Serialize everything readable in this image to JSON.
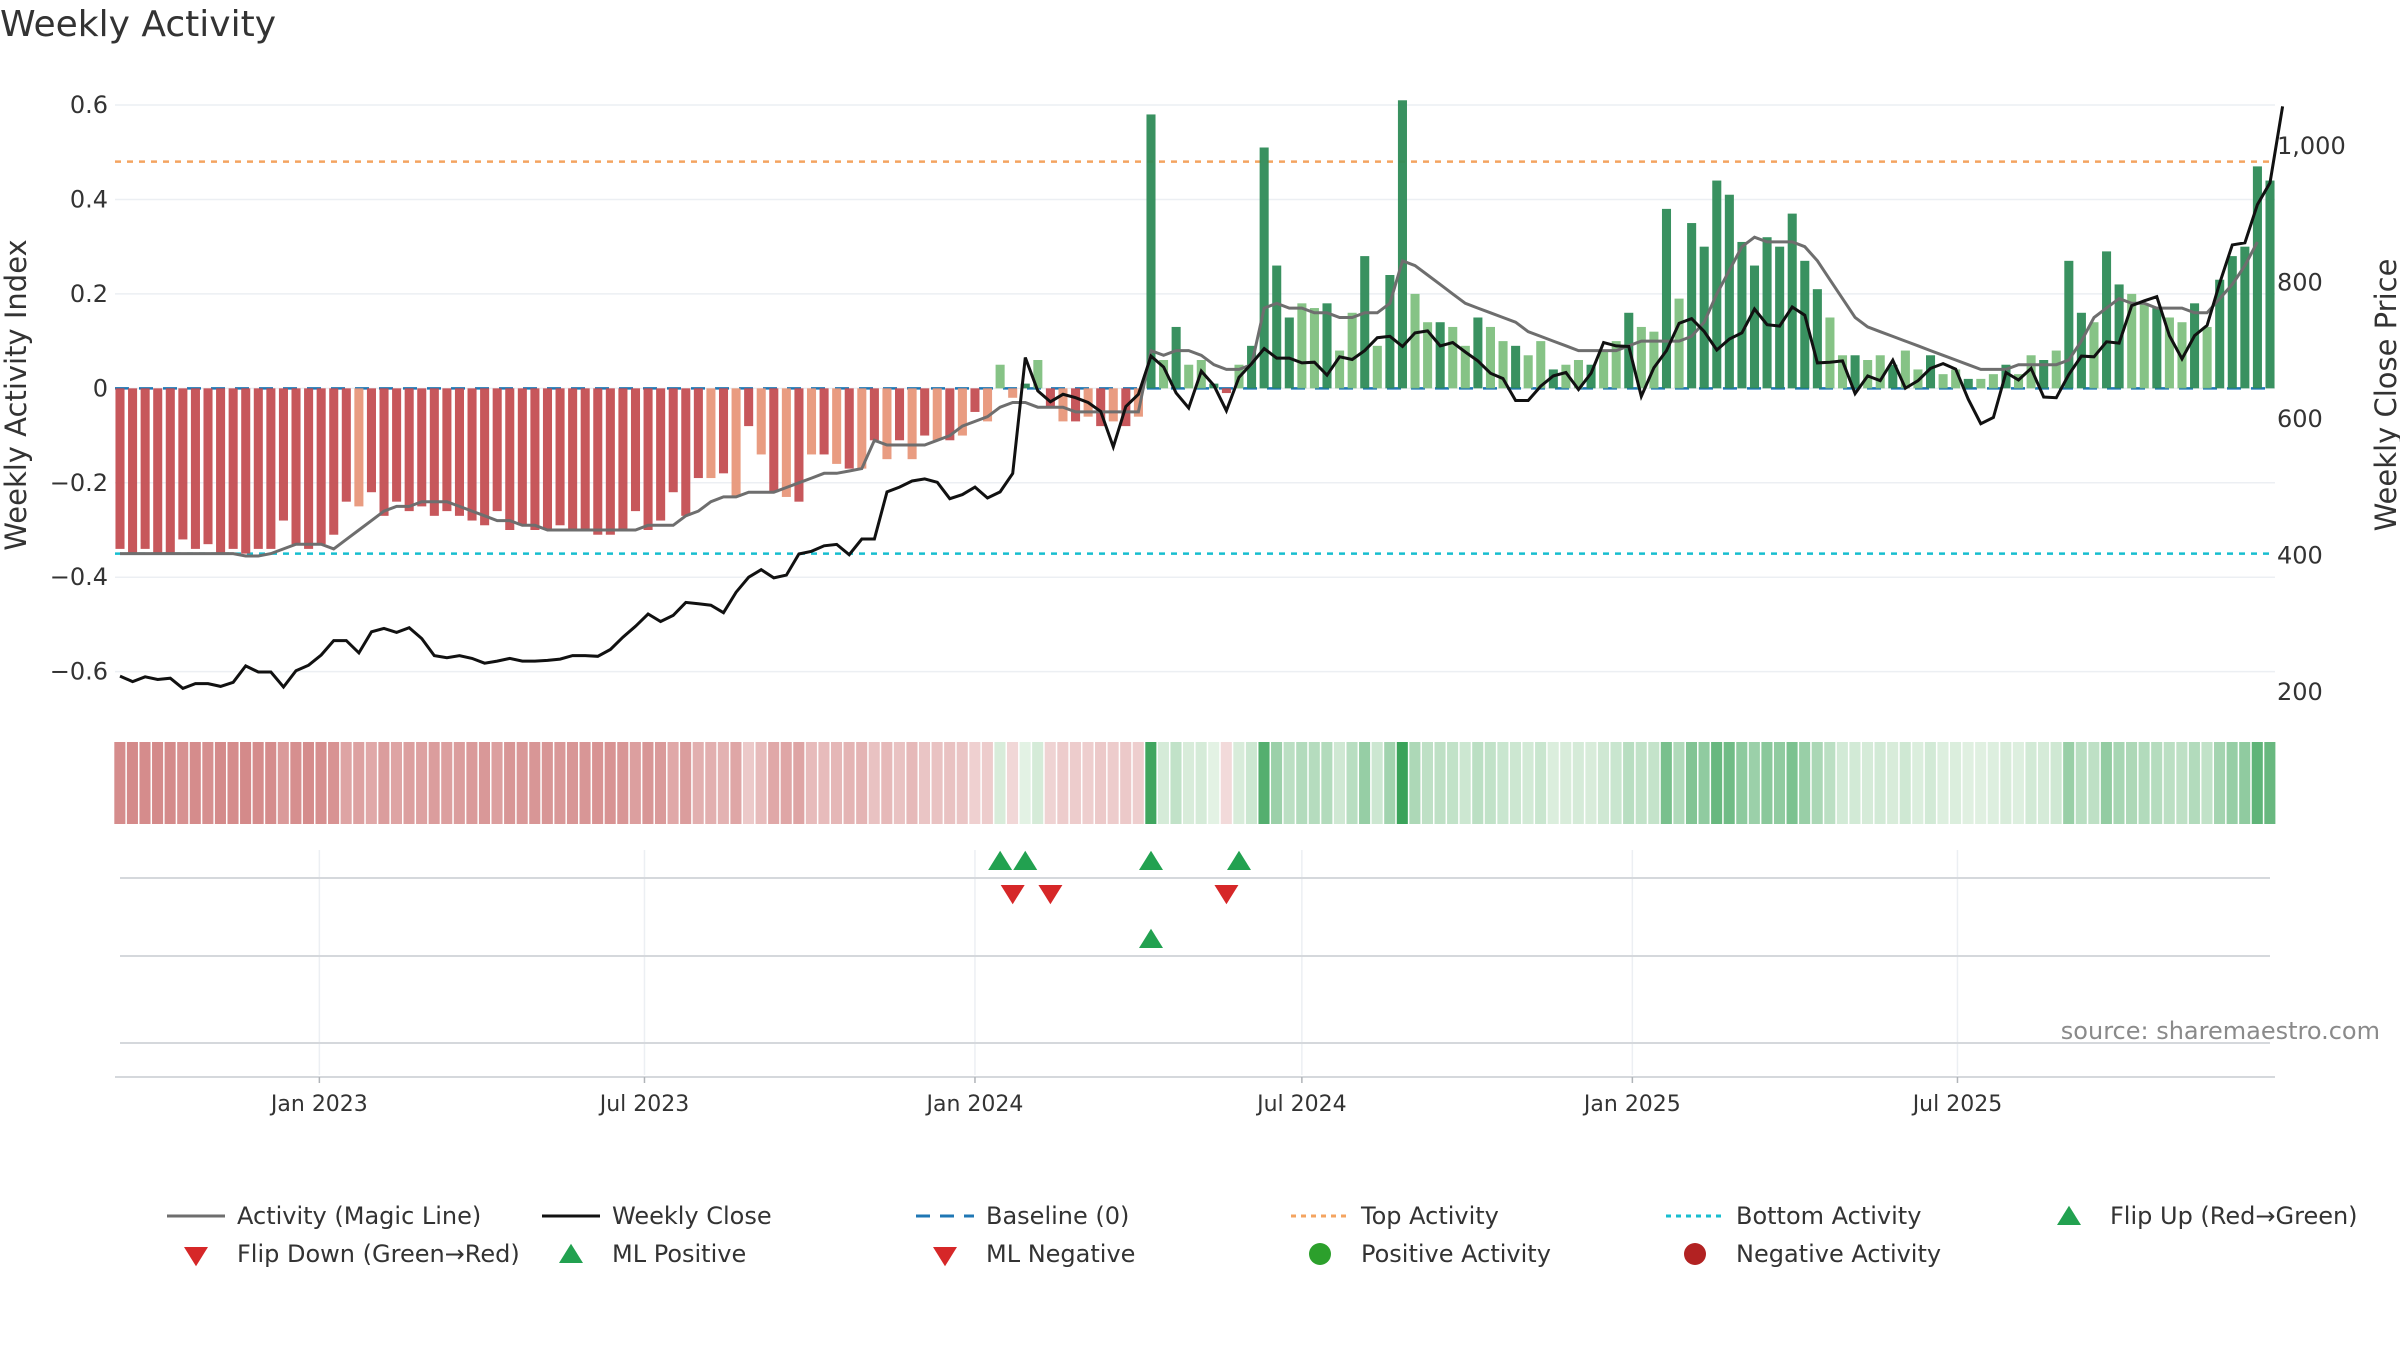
{
  "chart_data": {
    "type": "bar",
    "title": "Weekly Activity",
    "ylabel": "Weekly Activity Index",
    "y2label": "Weekly Close Price",
    "ylim": [
      -0.66,
      0.6
    ],
    "y2lim": [
      188,
      1060
    ],
    "yticks": [
      "0.6",
      "0.4",
      "0.2",
      "0",
      "−0.2",
      "−0.4",
      "−0.6"
    ],
    "yticks_values": [
      0.6,
      0.4,
      0.2,
      0,
      -0.2,
      -0.4,
      -0.6
    ],
    "y2ticks": [
      "1,000",
      "800",
      "600",
      "400",
      "200"
    ],
    "y2ticks_values": [
      1000,
      800,
      600,
      400,
      200
    ],
    "date_ticks": [
      "Jan 2023",
      "Jul 2023",
      "Jan 2024",
      "Jul 2024",
      "Jan 2025",
      "Jul 2025"
    ],
    "x_start": "2022-09-12",
    "x_step_days": 7,
    "top_activity": 0.48,
    "bottom_activity": -0.35,
    "baseline": 0,
    "source": "source: sharemaestro.com",
    "grid": true,
    "legend_placement": "bottom",
    "colors": {
      "bar_dark_red": "#c44e52",
      "bar_light_red": "#e8977a",
      "bar_dark_green": "#2e8b57",
      "bar_light_green": "#7fc07f",
      "magic_line": "#6e6e6e",
      "close_line": "#111111",
      "baseline": "#1f77b4",
      "top_line": "#f4a460",
      "bottom_line": "#17becf",
      "flip_up": "#22a150",
      "flip_down": "#d62728",
      "positive": "#2ca02c",
      "negative": "#b22222"
    },
    "activity": [
      -0.34,
      -0.35,
      -0.34,
      -0.35,
      -0.35,
      -0.32,
      -0.34,
      -0.33,
      -0.35,
      -0.34,
      -0.35,
      -0.34,
      -0.34,
      -0.28,
      -0.33,
      -0.34,
      -0.33,
      -0.31,
      -0.24,
      -0.25,
      -0.22,
      -0.27,
      -0.24,
      -0.26,
      -0.25,
      -0.27,
      -0.26,
      -0.27,
      -0.28,
      -0.29,
      -0.26,
      -0.3,
      -0.29,
      -0.3,
      -0.3,
      -0.29,
      -0.3,
      -0.3,
      -0.31,
      -0.31,
      -0.3,
      -0.26,
      -0.3,
      -0.28,
      -0.22,
      -0.27,
      -0.19,
      -0.19,
      -0.18,
      -0.23,
      -0.08,
      -0.14,
      -0.22,
      -0.23,
      -0.24,
      -0.14,
      -0.14,
      -0.16,
      -0.17,
      -0.17,
      -0.11,
      -0.15,
      -0.11,
      -0.15,
      -0.1,
      -0.11,
      -0.11,
      -0.1,
      -0.05,
      -0.07,
      0.05,
      -0.02,
      0.01,
      0.06,
      -0.04,
      -0.07,
      -0.07,
      -0.06,
      -0.08,
      -0.07,
      -0.08,
      -0.06,
      0.58,
      0.06,
      0.13,
      0.05,
      0.06,
      0.01,
      -0.01,
      0.05,
      0.09,
      0.51,
      0.26,
      0.15,
      0.18,
      0.17,
      0.18,
      0.08,
      0.16,
      0.28,
      0.09,
      0.24,
      0.61,
      0.2,
      0.14,
      0.14,
      0.13,
      0.09,
      0.15,
      0.13,
      0.1,
      0.09,
      0.07,
      0.1,
      0.04,
      0.05,
      0.06,
      0.05,
      0.08,
      0.1,
      0.16,
      0.13,
      0.12,
      0.38,
      0.19,
      0.35,
      0.3,
      0.44,
      0.41,
      0.31,
      0.26,
      0.32,
      0.3,
      0.37,
      0.27,
      0.21,
      0.15,
      0.07,
      0.07,
      0.06,
      0.07,
      0.05,
      0.08,
      0.04,
      0.07,
      0.03,
      0.04,
      0.02,
      0.02,
      0.03,
      0.05,
      0.03,
      0.07,
      0.06,
      0.08,
      0.27,
      0.16,
      0.14,
      0.29,
      0.22,
      0.2,
      0.18,
      0.17,
      0.15,
      0.14,
      0.18,
      0.13,
      0.23,
      0.28,
      0.3,
      0.47,
      0.44
    ],
    "magic_line": [
      -0.35,
      -0.35,
      -0.35,
      -0.35,
      -0.35,
      -0.35,
      -0.35,
      -0.35,
      -0.35,
      -0.35,
      -0.355,
      -0.355,
      -0.35,
      -0.34,
      -0.33,
      -0.33,
      -0.33,
      -0.34,
      -0.32,
      -0.3,
      -0.28,
      -0.26,
      -0.25,
      -0.25,
      -0.24,
      -0.24,
      -0.24,
      -0.25,
      -0.26,
      -0.27,
      -0.28,
      -0.28,
      -0.29,
      -0.29,
      -0.3,
      -0.3,
      -0.3,
      -0.3,
      -0.3,
      -0.3,
      -0.3,
      -0.3,
      -0.29,
      -0.29,
      -0.29,
      -0.27,
      -0.26,
      -0.24,
      -0.23,
      -0.23,
      -0.22,
      -0.22,
      -0.22,
      -0.21,
      -0.2,
      -0.19,
      -0.18,
      -0.18,
      -0.175,
      -0.17,
      -0.11,
      -0.12,
      -0.12,
      -0.12,
      -0.12,
      -0.11,
      -0.1,
      -0.08,
      -0.07,
      -0.06,
      -0.04,
      -0.03,
      -0.03,
      -0.04,
      -0.04,
      -0.04,
      -0.05,
      -0.05,
      -0.05,
      -0.05,
      -0.05,
      -0.05,
      0.08,
      0.07,
      0.08,
      0.08,
      0.07,
      0.05,
      0.04,
      0.04,
      0.05,
      0.17,
      0.18,
      0.17,
      0.17,
      0.16,
      0.16,
      0.15,
      0.15,
      0.16,
      0.16,
      0.18,
      0.27,
      0.26,
      0.24,
      0.22,
      0.2,
      0.18,
      0.17,
      0.16,
      0.15,
      0.14,
      0.12,
      0.11,
      0.1,
      0.09,
      0.08,
      0.08,
      0.08,
      0.08,
      0.09,
      0.1,
      0.1,
      0.1,
      0.1,
      0.11,
      0.14,
      0.2,
      0.25,
      0.3,
      0.32,
      0.31,
      0.31,
      0.31,
      0.3,
      0.27,
      0.23,
      0.19,
      0.15,
      0.13,
      0.12,
      0.11,
      0.1,
      0.09,
      0.08,
      0.07,
      0.06,
      0.05,
      0.04,
      0.04,
      0.04,
      0.05,
      0.05,
      0.05,
      0.05,
      0.06,
      0.1,
      0.15,
      0.17,
      0.19,
      0.18,
      0.18,
      0.17,
      0.17,
      0.17,
      0.16,
      0.16,
      0.19,
      0.22,
      0.26,
      0.31
    ],
    "weekly_close": [
      223,
      215,
      222,
      218,
      220,
      205,
      212,
      212,
      208,
      214,
      238,
      229,
      229,
      207,
      231,
      239,
      254,
      275,
      275,
      257,
      288,
      293,
      287,
      294,
      278,
      253,
      250,
      253,
      249,
      242,
      245,
      249,
      245,
      245,
      246,
      248,
      253,
      253,
      252,
      262,
      280,
      296,
      314,
      303,
      312,
      331,
      329,
      327,
      316,
      346,
      368,
      379,
      367,
      371,
      402,
      406,
      414,
      416,
      401,
      424,
      424,
      493,
      500,
      509,
      512,
      507,
      483,
      489,
      500,
      484,
      493,
      520,
      690,
      641,
      625,
      636,
      631,
      624,
      611,
      559,
      618,
      636,
      692,
      676,
      638,
      616,
      670,
      649,
      612,
      661,
      681,
      703,
      689,
      689,
      682,
      683,
      664,
      691,
      687,
      700,
      719,
      721,
      706,
      726,
      729,
      707,
      712,
      698,
      685,
      667,
      659,
      627,
      627,
      648,
      663,
      668,
      643,
      667,
      712,
      707,
      706,
      633,
      675,
      700,
      740,
      747,
      728,
      701,
      717,
      726,
      761,
      738,
      736,
      764,
      752,
      682,
      683,
      685,
      637,
      663,
      656,
      686,
      645,
      656,
      674,
      681,
      673,
      629,
      593,
      602,
      668,
      657,
      674,
      632,
      631,
      665,
      692,
      691,
      713,
      711,
      766,
      773,
      779,
      722,
      688,
      722,
      737,
      799,
      855,
      858,
      914,
      946,
      1058
    ]
  }
}
